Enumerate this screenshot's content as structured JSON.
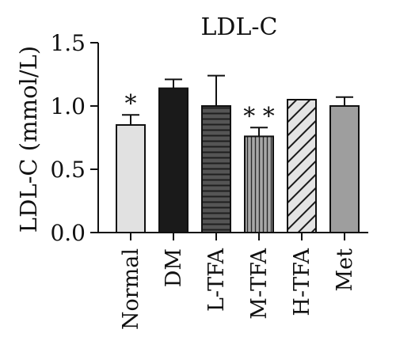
{
  "chart_data": {
    "type": "bar",
    "title": "LDL-C",
    "xlabel": "",
    "ylabel": "LDL-C (mmol/L)",
    "ylim": [
      0,
      1.5
    ],
    "yticks": [
      "0.0",
      "0.5",
      "1.0",
      "1.5"
    ],
    "ytick_values": [
      0,
      0.5,
      1.0,
      1.5
    ],
    "grid": false,
    "legend": "none",
    "categories": [
      "Normal",
      "DM",
      "L-TFA",
      "M-TFA",
      "H-TFA",
      "Met"
    ],
    "values": [
      0.85,
      1.14,
      1.0,
      0.76,
      1.05,
      1.0
    ],
    "error_upper": [
      0.93,
      1.21,
      1.24,
      0.83,
      1.05,
      1.07
    ],
    "significance": [
      "*",
      "",
      "",
      "* *",
      "",
      ""
    ],
    "fills": [
      "light-gray",
      "black",
      "horizontal-lines",
      "vertical-lines",
      "diagonal-hatch",
      "gray"
    ],
    "colors": {
      "light_gray": "#e1e1e1",
      "black": "#1a1a1a",
      "dark_gray": "#555555",
      "mid_gray": "#9e9e9e",
      "hatch_bg": "#e4e4e4",
      "axis": "#111111"
    }
  }
}
